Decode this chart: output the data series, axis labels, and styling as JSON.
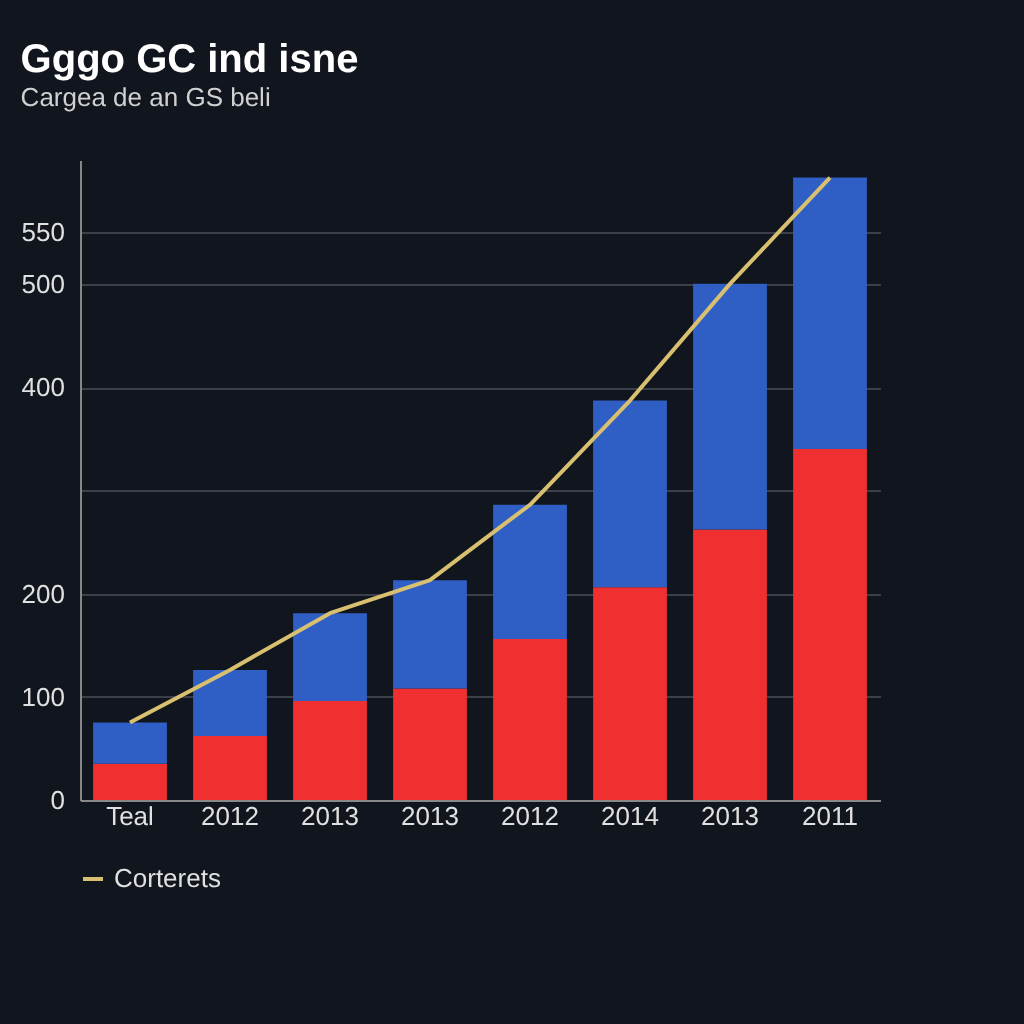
{
  "chart_data": {
    "type": "bar",
    "title": "Gggo GC ind isne",
    "subtitle": "Cargea de an GS beli",
    "stacked": true,
    "categories": [
      "Teal",
      "2012",
      "2013",
      "2013",
      "2012",
      "2014",
      "2013",
      "2011"
    ],
    "series": [
      {
        "color": "#f03030",
        "values": [
          35,
          62,
          96,
          108,
          156,
          206,
          262,
          340
        ]
      },
      {
        "color": "#2f5fc4",
        "values": [
          40,
          64,
          85,
          105,
          130,
          181,
          238,
          263
        ]
      },
      {
        "name": "Corterets",
        "type": "line",
        "color": "#d8c070",
        "values": [
          75,
          126,
          181,
          213,
          286,
          387,
          500,
          603
        ]
      }
    ],
    "ylim": [
      0,
      620
    ],
    "yticks": [
      0,
      100,
      200,
      {
        "value": 300,
        "label": null
      },
      400,
      500,
      550
    ],
    "grid": "y",
    "legend": "bottom"
  }
}
